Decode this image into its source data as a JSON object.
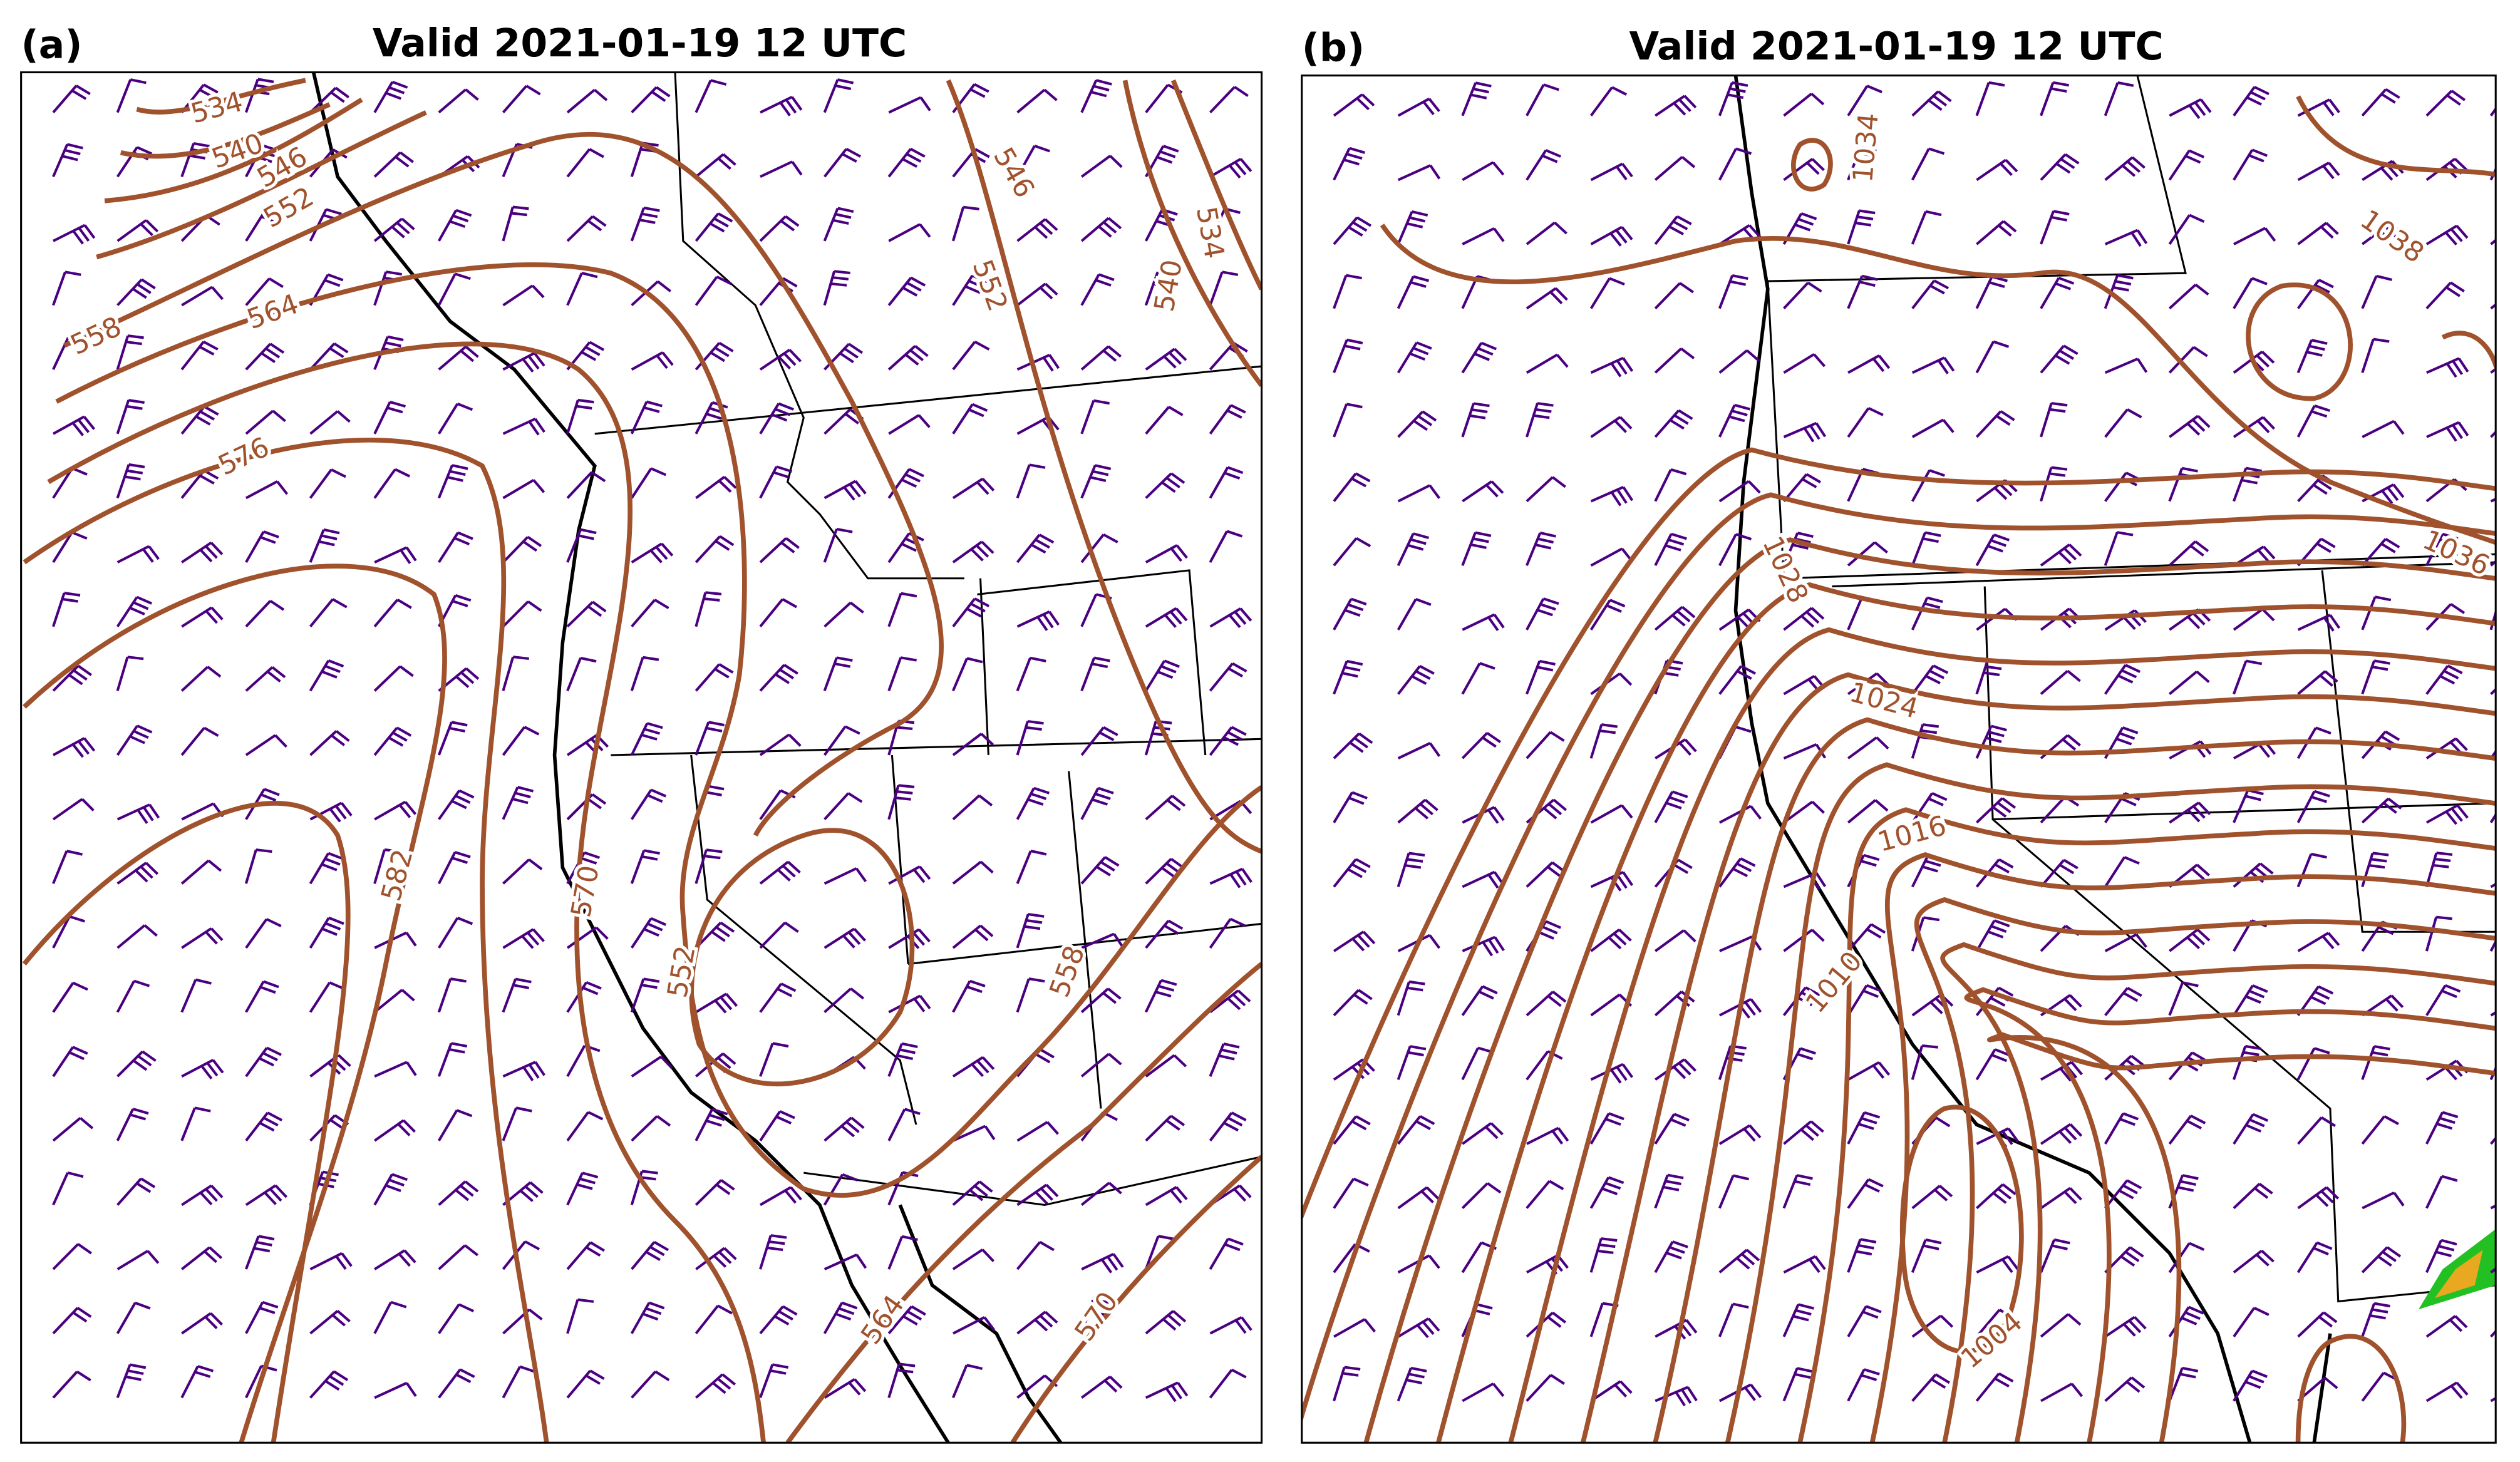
{
  "panels": [
    {
      "label": "(a)",
      "title": "Valid 2021-01-19 12 UTC",
      "contour_labels": [
        534,
        540,
        546,
        552,
        558,
        564,
        576,
        582,
        570,
        552,
        558,
        564,
        570,
        546,
        552,
        540,
        534
      ]
    },
    {
      "label": "(b)",
      "title": "Valid 2021-01-19 12 UTC",
      "contour_labels": [
        1034,
        1038,
        1036,
        1028,
        1024,
        1016,
        1010,
        1004
      ]
    }
  ]
}
